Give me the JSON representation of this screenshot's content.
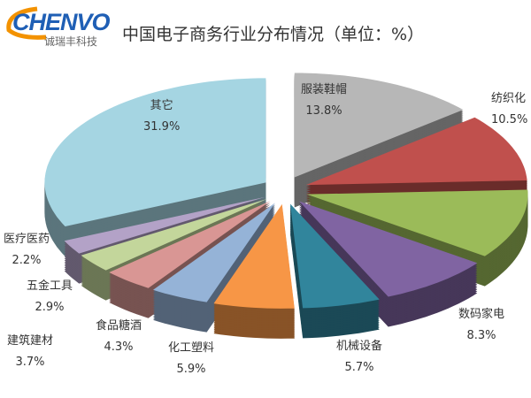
{
  "logo": {
    "brand": "CHENVO",
    "subtitle": "诚瑞丰科技"
  },
  "chart_data": {
    "type": "pie",
    "style": "3d-exploded",
    "title": "中国电子商务行业分布情况（单位：%）",
    "start": "top",
    "direction": "clockwise",
    "slices": [
      {
        "label": "服装鞋帽",
        "value": 13.8,
        "value_text": "13.8%",
        "color": "#b7b7b7"
      },
      {
        "label": "纺织化",
        "value": 10.5,
        "value_text": "10.5%",
        "color": "#c0504d"
      },
      {
        "label": "",
        "value": 10.8,
        "value_text": "",
        "color": "#9bbb59"
      },
      {
        "label": "数码家电",
        "value": 8.3,
        "value_text": "8.3%",
        "color": "#8064a2"
      },
      {
        "label": "机械设备",
        "value": 5.7,
        "value_text": "5.7%",
        "color": "#31859c"
      },
      {
        "label": "化工塑料",
        "value": 5.9,
        "value_text": "5.9%",
        "color": "#f79646"
      },
      {
        "label": "食品糖酒",
        "value": 4.3,
        "value_text": "4.3%",
        "color": "#95b3d7"
      },
      {
        "label": "建筑建材",
        "value": 3.7,
        "value_text": "3.7%",
        "color": "#d99694"
      },
      {
        "label": "五金工具",
        "value": 2.9,
        "value_text": "2.9%",
        "color": "#c3d69b"
      },
      {
        "label": "医疗医药",
        "value": 2.2,
        "value_text": "2.2%",
        "color": "#b3a2c7"
      },
      {
        "label": "其它",
        "value": 31.9,
        "value_text": "31.9%",
        "color": "#a5d5e2"
      }
    ]
  }
}
